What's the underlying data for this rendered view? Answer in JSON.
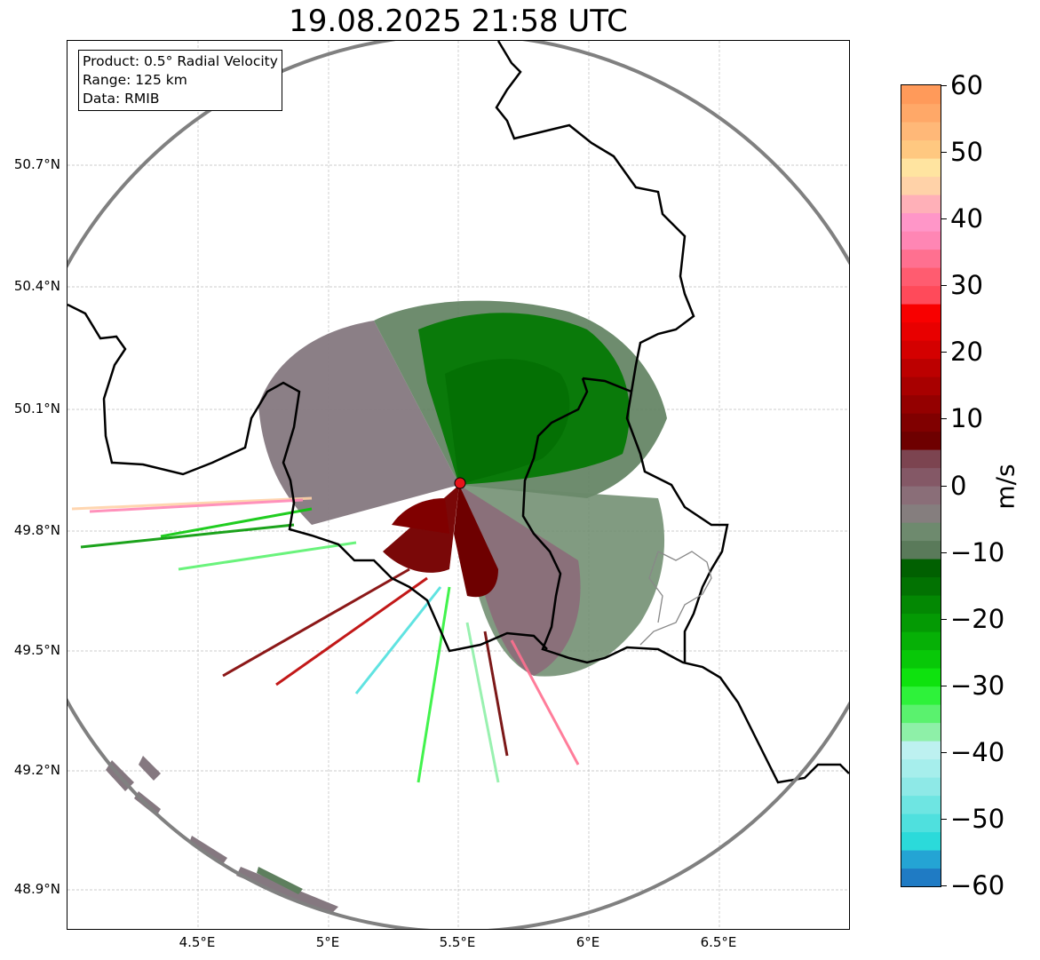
{
  "title": "19.08.2025 21:58 UTC",
  "info_box": {
    "product": "Product: 0.5° Radial Velocity",
    "range": "Range: 125 km",
    "data_source": "Data: RMIB"
  },
  "map": {
    "lat_ticks": [
      "50.7°N",
      "50.4°N",
      "50.1°N",
      "49.8°N",
      "49.5°N",
      "49.2°N",
      "48.9°N"
    ],
    "lon_ticks": [
      "4.5°E",
      "5°E",
      "5.5°E",
      "6°E",
      "6.5°E"
    ],
    "radar_site": {
      "lon": 5.5,
      "lat": 49.91
    },
    "range_ring_color": "#808080",
    "border_color": "#000000",
    "admin_border_color": "#888888",
    "marker_color": "#e8141a"
  },
  "colorbar": {
    "label": "m/s",
    "min": -60,
    "max": 60,
    "ticks": [
      "60",
      "50",
      "40",
      "30",
      "20",
      "10",
      "0",
      "−10",
      "−20",
      "−30",
      "−40",
      "−50",
      "−60"
    ],
    "colors": [
      "#1f7bc4",
      "#24a4d4",
      "#2bdada",
      "#4fe0de",
      "#6ee5e2",
      "#8ee9e7",
      "#a6eeec",
      "#bdf1f0",
      "#8ef0a8",
      "#5af26e",
      "#2ef23a",
      "#0ee20e",
      "#08c808",
      "#06b006",
      "#049a04",
      "#038803",
      "#027202",
      "#016001",
      "#5a7a5a",
      "#6e8a6e",
      "#857e7e",
      "#8a6e78",
      "#845866",
      "#7c4450",
      "#6e0000",
      "#800000",
      "#940000",
      "#a80000",
      "#bc0000",
      "#d40000",
      "#e80000",
      "#f80000",
      "#ff4a5a",
      "#ff5c70",
      "#ff7090",
      "#ff86b4",
      "#ff96c8",
      "#ffb0b8",
      "#ffd2a8",
      "#ffe4a0",
      "#ffc880",
      "#ffb878",
      "#ffa868",
      "#ff9a5a"
    ]
  }
}
